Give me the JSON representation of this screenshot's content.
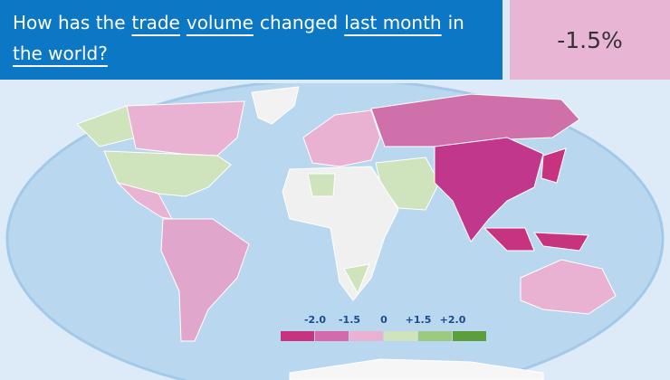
{
  "question": {
    "parts": [
      {
        "text": "How has the",
        "underlined": false
      },
      {
        "text": "trade",
        "underlined": true
      },
      {
        "text": "volume",
        "underlined": true
      },
      {
        "text": "changed",
        "underlined": false
      },
      {
        "text": "last month",
        "underlined": true
      },
      {
        "text": "in",
        "underlined": false
      },
      {
        "text": "the world?",
        "underlined": true
      }
    ]
  },
  "answer": "-1.5%",
  "legend": {
    "labels": [
      "-2.0",
      "-1.5",
      "0",
      "+1.5",
      "+2.0"
    ],
    "colors": [
      "#c8337f",
      "#d46aa9",
      "#e9b2d3",
      "#cfe3bd",
      "#9dca80",
      "#5b9e3c"
    ]
  }
}
